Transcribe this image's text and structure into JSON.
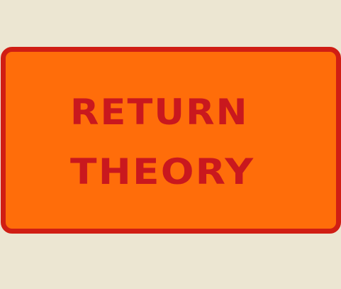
{
  "sign": {
    "line1": "RETURN",
    "line2": "THEORY"
  },
  "colors": {
    "background": "#ECE6D2",
    "panel_fill": "#FF6D0A",
    "panel_border": "#D01E14",
    "text": "#C9181E"
  }
}
